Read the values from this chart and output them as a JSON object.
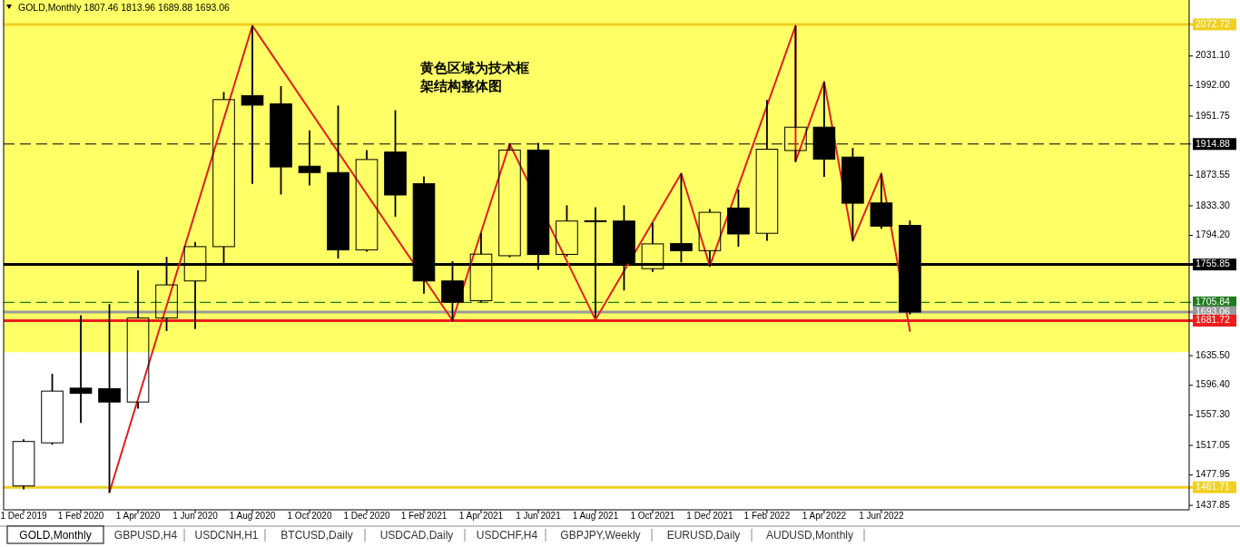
{
  "chart_data": {
    "type": "candlestick",
    "title": "GOLD,Monthly  1807.46 1813.96 1689.88 1693.06",
    "x": [
      "2019-12",
      "2020-01",
      "2020-02",
      "2020-03",
      "2020-04",
      "2020-05",
      "2020-06",
      "2020-07",
      "2020-08",
      "2020-09",
      "2020-10",
      "2020-11",
      "2020-12",
      "2021-01",
      "2021-02",
      "2021-03",
      "2021-04",
      "2021-05",
      "2021-06",
      "2021-07",
      "2021-08",
      "2021-09",
      "2021-10",
      "2021-11",
      "2021-12",
      "2022-01",
      "2022-02",
      "2022-03",
      "2022-04",
      "2022-05",
      "2022-06",
      "2022-07"
    ],
    "ohlc": [
      [
        1463.5,
        1525,
        1459,
        1522.2
      ],
      [
        1520.4,
        1611.5,
        1518,
        1588.7
      ],
      [
        1592.6,
        1688.8,
        1546.8,
        1585.7
      ],
      [
        1591.9,
        1703.6,
        1454.6,
        1574.3
      ],
      [
        1574.3,
        1748,
        1565.5,
        1685.2
      ],
      [
        1685.2,
        1765.9,
        1668,
        1728.9
      ],
      [
        1734.1,
        1785.6,
        1670.6,
        1779.4
      ],
      [
        1779.4,
        1983.5,
        1757.5,
        1973.5
      ],
      [
        1978.8,
        2070.9,
        1862.2,
        1966.2
      ],
      [
        1967.9,
        1991.2,
        1848.2,
        1884.6
      ],
      [
        1885.6,
        1932.9,
        1860.1,
        1877.2
      ],
      [
        1877.2,
        1965.7,
        1763.8,
        1775.2
      ],
      [
        1775.2,
        1906.9,
        1772.6,
        1894.4
      ],
      [
        1904.3,
        1959.5,
        1818.9,
        1847.6
      ],
      [
        1862.6,
        1872.1,
        1717.4,
        1734.1
      ],
      [
        1734.1,
        1760.2,
        1681,
        1706
      ],
      [
        1708.1,
        1797.6,
        1706,
        1769.5
      ],
      [
        1767.4,
        1915.8,
        1765.3,
        1906.9
      ],
      [
        1906.9,
        1916.3,
        1748.7,
        1769
      ],
      [
        1769.2,
        1834,
        1766.4,
        1813.2
      ],
      [
        1813.2,
        1831.4,
        1686.2,
        1813.6
      ],
      [
        1813.2,
        1834,
        1721.6,
        1757.5
      ],
      [
        1750.3,
        1810.6,
        1746,
        1783
      ],
      [
        1783.5,
        1875.7,
        1758.6,
        1774.1
      ],
      [
        1774.1,
        1828.9,
        1753.3,
        1824.7
      ],
      [
        1830.4,
        1854.9,
        1779.4,
        1796.1
      ],
      [
        1797,
        1973,
        1787.2,
        1908
      ],
      [
        1906.3,
        2070.9,
        1891.3,
        1937.1
      ],
      [
        1937.1,
        1996.5,
        1871.5,
        1895
      ],
      [
        1897.6,
        1909.6,
        1787.2,
        1836.7
      ],
      [
        1837.1,
        1875.7,
        1802.8,
        1806.5
      ],
      [
        1807.46,
        1813.96,
        1689.88,
        1693.06
      ]
    ],
    "series": [
      {
        "type": "line",
        "color": "#e02020",
        "x": [
          "2020-03",
          "2020-08",
          "2021-03",
          "2021-05",
          "2021-08",
          "2021-11",
          "2021-12",
          "2022-03",
          "2022-03",
          "2022-04",
          "2022-05",
          "2022-06",
          "2022-07"
        ],
        "values": [
          1455,
          2071,
          1682,
          1915,
          1683,
          1876,
          1754,
          2071,
          1892,
          1997,
          1787,
          1876,
          1668
        ]
      }
    ],
    "xlim": [
      "2019-11-10",
      "2023-04-24"
    ],
    "xticks": [
      {
        "value": "2019-12",
        "label": "1 Dec 2019"
      },
      {
        "value": "2020-02",
        "label": "1 Feb 2020"
      },
      {
        "value": "2020-04",
        "label": "1 Apr 2020"
      },
      {
        "value": "2020-06",
        "label": "1 Jun 2020"
      },
      {
        "value": "2020-08",
        "label": "1 Aug 2020"
      },
      {
        "value": "2020-10",
        "label": "1 Oct 2020"
      },
      {
        "value": "2020-12",
        "label": "1 Dec 2020"
      },
      {
        "value": "2021-02",
        "label": "1 Feb 2021"
      },
      {
        "value": "2021-04",
        "label": "1 Apr 2021"
      },
      {
        "value": "2021-06",
        "label": "1 Jun 2021"
      },
      {
        "value": "2021-08",
        "label": "1 Aug 2021"
      },
      {
        "value": "2021-10",
        "label": "1 Oct 2021"
      },
      {
        "value": "2021-12",
        "label": "1 Dec 2021"
      },
      {
        "value": "2022-02",
        "label": "1 Feb 2022"
      },
      {
        "value": "2022-04",
        "label": "1 Apr 2022"
      },
      {
        "value": "2022-06",
        "label": "1 Jun 2022"
      }
    ],
    "ylim": [
      1432,
      2105
    ],
    "yticks": [
      {
        "value": 2031.1,
        "label": "2031.10"
      },
      {
        "value": 1992,
        "label": "1992.00"
      },
      {
        "value": 1951.75,
        "label": "1951.75"
      },
      {
        "value": 1873.55,
        "label": "1873.55"
      },
      {
        "value": 1833.3,
        "label": "1833.30"
      },
      {
        "value": 1794.2,
        "label": "1794.20"
      },
      {
        "value": 1635.5,
        "label": "1635.50"
      },
      {
        "value": 1596.4,
        "label": "1596.40"
      },
      {
        "value": 1557.3,
        "label": "1557.30"
      },
      {
        "value": 1517.05,
        "label": "1517.05"
      },
      {
        "value": 1477.95,
        "label": "1477.95"
      },
      {
        "value": 1437.85,
        "label": "1437.85"
      }
    ],
    "bands": [
      {
        "axis": "y",
        "from": 1640,
        "to": 2105,
        "color": "#ffff66"
      }
    ],
    "ref_lines": [
      {
        "axis": "y",
        "value": 2072.72,
        "label": "2072.72",
        "color": "#f0d020",
        "line_style": "solid"
      },
      {
        "axis": "y",
        "value": 1914.88,
        "label": "1914.88",
        "color": "#000000",
        "line_style": "dashed"
      },
      {
        "axis": "y",
        "value": 1755.85,
        "label": "1755.85",
        "color": "#000000",
        "line_style": "solid"
      },
      {
        "axis": "y",
        "value": 1705.84,
        "label": "1705.84",
        "color": "#1e7b1e",
        "line_style": "dashed"
      },
      {
        "axis": "y",
        "value": 1693.06,
        "label": "1693.06",
        "color": "#9a9a9a",
        "line_style": "solid"
      },
      {
        "axis": "y",
        "value": 1681.72,
        "label": "1681.72",
        "color": "#ee1c1c",
        "line_style": "solid"
      },
      {
        "axis": "y",
        "value": 1461.71,
        "label": "1461.71",
        "color": "#f0d020",
        "line_style": "solid"
      }
    ],
    "annotations": [
      "黄色区域为技术框架结构整体图",
      "GOLD,Monthly",
      "GBPUSD,H4",
      "USDCNH,H1",
      "BTCUSD,Daily",
      "USDCAD,Daily",
      "USDCHF,H4",
      "GBPJPY,Weekly",
      "EURUSD,Daily",
      "AUDUSD,Monthly"
    ],
    "marker": "none"
  }
}
